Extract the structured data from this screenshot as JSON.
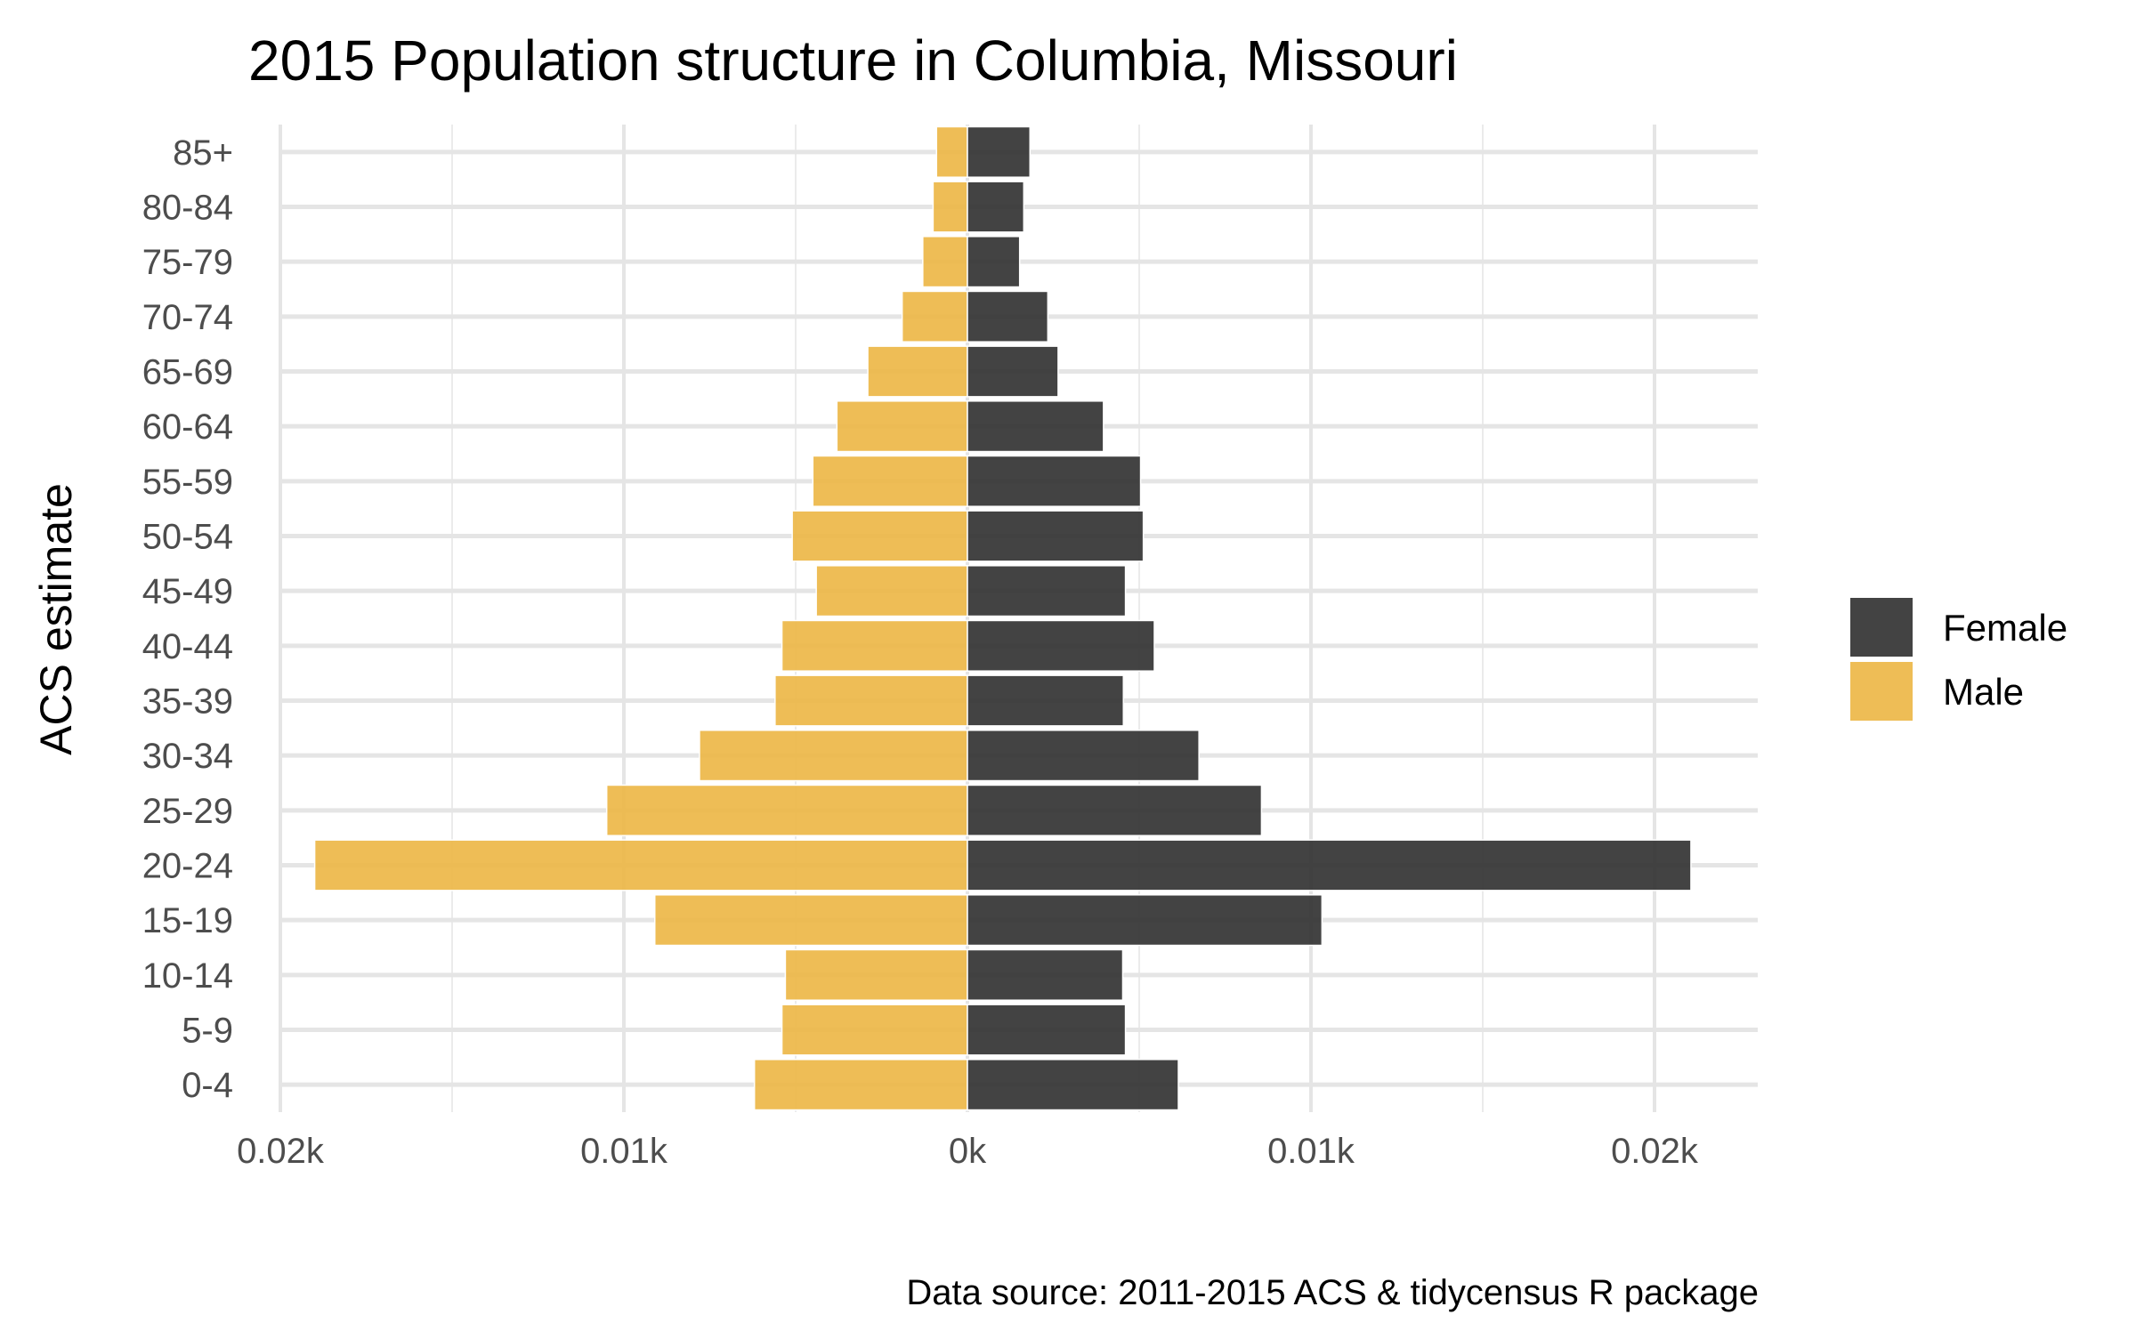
{
  "chart_data": {
    "type": "bar",
    "orientation": "horizontal",
    "layout": "population-pyramid",
    "title": "2015 Population structure in Columbia, Missouri",
    "xlabel": "",
    "ylabel": "ACS estimate",
    "caption": "Data source: 2011-2015 ACS & tidycensus R package",
    "categories": [
      "0-4",
      "5-9",
      "10-14",
      "15-19",
      "20-24",
      "25-29",
      "30-34",
      "35-39",
      "40-44",
      "45-49",
      "50-54",
      "55-59",
      "60-64",
      "65-69",
      "70-74",
      "75-79",
      "80-84",
      "85+"
    ],
    "series": [
      {
        "name": "Female",
        "color": "#333333",
        "values": [
          3070,
          2300,
          2260,
          5160,
          10530,
          4280,
          3370,
          2270,
          2720,
          2300,
          2560,
          2520,
          1980,
          1320,
          1170,
          760,
          820,
          910
        ]
      },
      {
        "name": "Male",
        "color": "#EDB748",
        "values": [
          -3100,
          -2700,
          -2650,
          -4550,
          -9500,
          -5250,
          -3900,
          -2800,
          -2700,
          -2200,
          -2550,
          -2250,
          -1900,
          -1450,
          -950,
          -650,
          -500,
          -450
        ]
      }
    ],
    "xlim": [
      -10000,
      11500
    ],
    "xticks": [
      {
        "value": -10000,
        "label": "0.02k"
      },
      {
        "value": -5000,
        "label": "0.01k"
      },
      {
        "value": 0,
        "label": "0k"
      },
      {
        "value": 5000,
        "label": "0.01k"
      },
      {
        "value": 10000,
        "label": "0.02k"
      }
    ],
    "grid": true,
    "legend": {
      "position": "right",
      "entries": [
        "Female",
        "Male"
      ]
    }
  }
}
